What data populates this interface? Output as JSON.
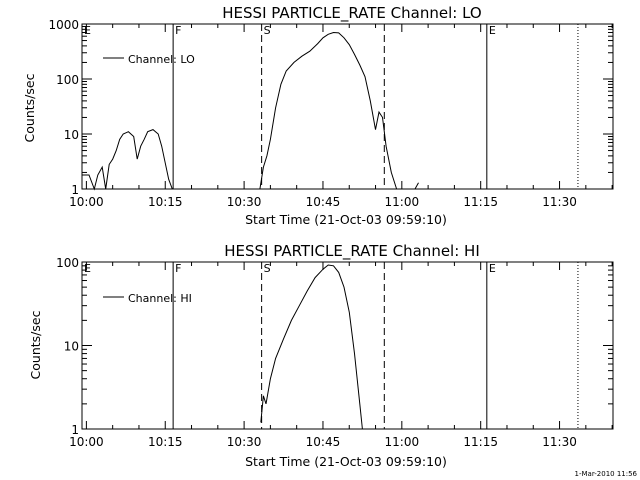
{
  "figure_note": "1-Mar-2010 11:56",
  "chart_data": [
    {
      "type": "line",
      "title": "HESSI PARTICLE_RATE Channel: LO",
      "xlabel": "Start Time (21-Oct-03 09:59:10)",
      "ylabel": "Counts/sec",
      "y_scale": "log",
      "ylim": [
        1,
        1000
      ],
      "xlim": [
        "09:59:10",
        "11:40:10"
      ],
      "x_tick_labels": [
        "10:00",
        "10:15",
        "10:30",
        "10:45",
        "11:00",
        "11:15",
        "11:30"
      ],
      "y_tick_labels": [
        "1",
        "10",
        "100",
        "1000"
      ],
      "y_ticks": [
        1,
        10,
        100,
        1000
      ],
      "legend": {
        "position": "top-left",
        "entries": [
          "Channel: LO"
        ]
      },
      "color": "#000000",
      "markers": [
        {
          "label": "E",
          "x": "09:59:10",
          "style": "solid"
        },
        {
          "label": "F",
          "x": "10:16:30",
          "style": "solid"
        },
        {
          "label": "S",
          "x": "10:33:20",
          "style": "dashed"
        },
        {
          "label": "",
          "x": "10:56:40",
          "style": "dashed"
        },
        {
          "label": "E",
          "x": "11:16:10",
          "style": "solid"
        },
        {
          "label": "",
          "x": "11:33:30",
          "style": "dotted"
        }
      ],
      "series": [
        {
          "name": "Channel: LO",
          "segments": [
            {
              "x": [
                "09:59:10",
                "10:00:30",
                "10:01:30",
                "10:02:10",
                "10:03:00",
                "10:03:40",
                "10:04:20",
                "10:05:00",
                "10:05:40",
                "10:06:20",
                "10:07:00",
                "10:08:00",
                "10:09:00",
                "10:09:40",
                "10:10:20",
                "10:11:00",
                "10:11:40",
                "10:12:40",
                "10:13:40",
                "10:14:20",
                "10:15:00",
                "10:15:40",
                "10:16:20"
              ],
              "y": [
                1.8,
                1.8,
                1.0,
                1.8,
                2.5,
                1.0,
                2.8,
                3.5,
                5,
                8,
                10,
                11,
                9,
                3.5,
                6,
                8,
                11,
                12,
                10,
                6,
                3,
                1.5,
                1.0
              ]
            },
            {
              "x": [
                "10:33:00",
                "10:33:40",
                "10:34:20",
                "10:35:00",
                "10:36:00",
                "10:37:00",
                "10:38:00",
                "10:39:30",
                "10:41:00",
                "10:42:30",
                "10:44:00",
                "10:45:00",
                "10:46:00",
                "10:47:00",
                "10:48:00",
                "10:49:00",
                "10:50:00",
                "10:51:00",
                "10:52:00",
                "10:53:00",
                "10:54:00",
                "10:55:00",
                "10:55:40",
                "10:56:20",
                "10:57:00",
                "10:58:00",
                "10:59:00"
              ],
              "y": [
                1.0,
                2.5,
                4,
                8,
                30,
                80,
                140,
                200,
                260,
                320,
                440,
                560,
                650,
                700,
                690,
                560,
                420,
                280,
                180,
                110,
                40,
                12,
                25,
                20,
                6,
                2,
                1.0
              ]
            },
            {
              "x": [
                "11:02:30",
                "11:03:10"
              ],
              "y": [
                1.0,
                1.3
              ]
            }
          ]
        }
      ]
    },
    {
      "type": "line",
      "title": "HESSI PARTICLE_RATE Channel: HI",
      "xlabel": "Start Time (21-Oct-03 09:59:10)",
      "ylabel": "Counts/sec",
      "y_scale": "log",
      "ylim": [
        1,
        100
      ],
      "xlim": [
        "09:59:10",
        "11:40:10"
      ],
      "x_tick_labels": [
        "10:00",
        "10:15",
        "10:30",
        "10:45",
        "11:00",
        "11:15",
        "11:30"
      ],
      "y_tick_labels": [
        "1",
        "10",
        "100"
      ],
      "y_ticks": [
        1,
        10,
        100
      ],
      "legend": {
        "position": "top-left",
        "entries": [
          "Channel: HI"
        ]
      },
      "color": "#000000",
      "markers": [
        {
          "label": "E",
          "x": "09:59:10",
          "style": "solid"
        },
        {
          "label": "F",
          "x": "10:16:30",
          "style": "solid"
        },
        {
          "label": "S",
          "x": "10:33:20",
          "style": "dashed"
        },
        {
          "label": "",
          "x": "10:56:40",
          "style": "dashed"
        },
        {
          "label": "E",
          "x": "11:16:10",
          "style": "solid"
        },
        {
          "label": "",
          "x": "11:33:30",
          "style": "dotted"
        }
      ],
      "series": [
        {
          "name": "Channel: HI",
          "segments": [
            {
              "x": [
                "10:33:10",
                "10:33:40",
                "10:34:10",
                "10:35:00",
                "10:36:00",
                "10:37:30",
                "10:39:00",
                "10:40:30",
                "10:42:00",
                "10:43:30",
                "10:45:00",
                "10:46:00",
                "10:47:00",
                "10:48:00",
                "10:49:00",
                "10:50:00",
                "10:51:00",
                "10:52:00",
                "10:52:30"
              ],
              "y": [
                1.2,
                2.5,
                2.0,
                4,
                7,
                12,
                20,
                30,
                45,
                65,
                82,
                92,
                90,
                75,
                50,
                25,
                8,
                2,
                1.0
              ]
            }
          ]
        }
      ]
    }
  ]
}
